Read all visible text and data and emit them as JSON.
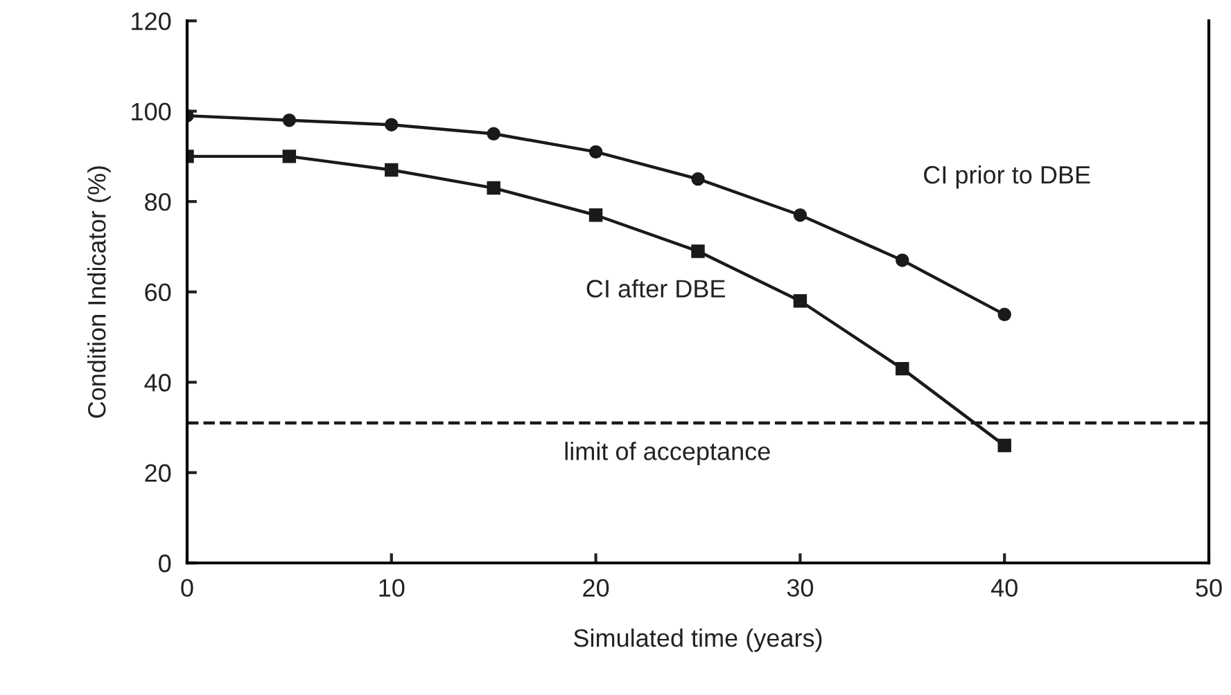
{
  "chart_data": {
    "type": "line",
    "xlabel": "Simulated time (years)",
    "ylabel": "Condition Indicator (%)",
    "x": [
      0,
      5,
      10,
      15,
      20,
      25,
      30,
      35,
      40
    ],
    "series": [
      {
        "name": "CI prior to DBE",
        "color": "#1a1a1a",
        "marker": "circle",
        "values": [
          99,
          98,
          97,
          95,
          91,
          85,
          77,
          67,
          55
        ]
      },
      {
        "name": "CI after DBE",
        "color": "#1a1a1a",
        "marker": "square",
        "values": [
          90,
          90,
          87,
          83,
          77,
          69,
          58,
          43,
          26
        ]
      }
    ],
    "ref_lines": [
      {
        "axis": "y",
        "value": 31,
        "label": "limit of acceptance",
        "color": "#1a1a1a",
        "line_style": "dashed"
      }
    ],
    "xlim": [
      0,
      50
    ],
    "xticks": [
      0,
      10,
      20,
      30,
      40,
      50
    ],
    "ylim": [
      0,
      120
    ],
    "yticks": [
      0,
      20,
      40,
      60,
      80,
      100,
      120
    ],
    "grid": false,
    "legend": false,
    "line_style": "solid"
  }
}
